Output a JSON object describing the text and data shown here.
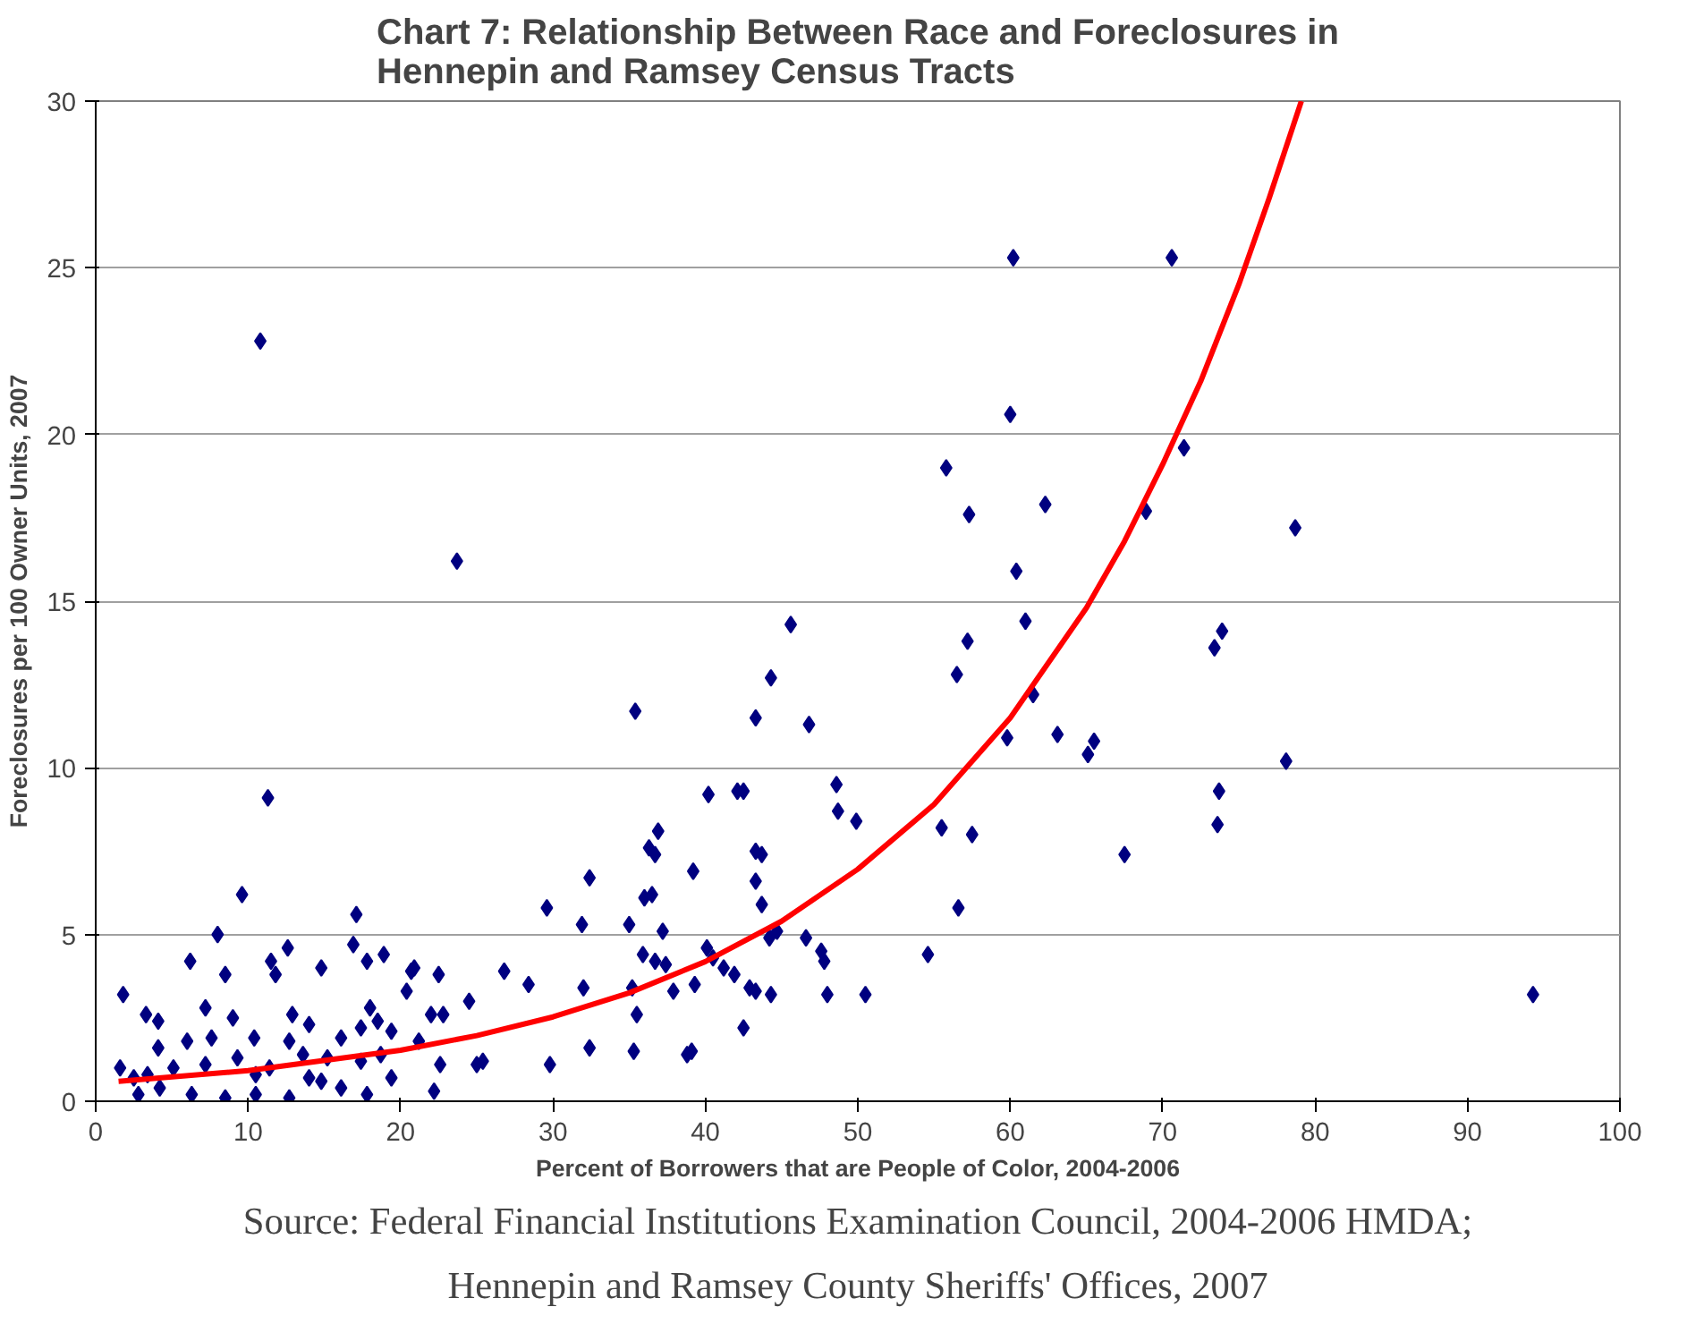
{
  "chart_data": {
    "type": "scatter",
    "title": "Chart 7: Relationship Between Race and Foreclosures in Hennepin and Ramsey Census Tracts",
    "xlabel": "Percent of Borrowers that are People of Color, 2004-2006",
    "ylabel": "Foreclosures per 100 Owner Units, 2007",
    "annotations": [
      "Source: Federal Financial Institutions Examination Council, 2004-2006 HMDA;",
      "Hennepin and Ramsey County Sheriffs' Offices, 2007"
    ],
    "xlim": [
      0,
      100
    ],
    "ylim": [
      0,
      30
    ],
    "xticks": [
      0,
      10,
      20,
      30,
      40,
      50,
      60,
      70,
      80,
      90,
      100
    ],
    "yticks": [
      0,
      5,
      10,
      15,
      20,
      25,
      30
    ],
    "grid": "y",
    "series": [
      {
        "marker": "diamond",
        "color": "#000080",
        "x": [
          10.8,
          23.7,
          60.2,
          70.6,
          60.0,
          55.8,
          62.3,
          68.9,
          71.4,
          78.7,
          57.3,
          60.4,
          61.0,
          45.6,
          44.3,
          61.5,
          56.5,
          57.2,
          73.9,
          73.4,
          46.8,
          35.4,
          43.3,
          63.1,
          59.8,
          65.5,
          65.1,
          78.1,
          11.3,
          40.2,
          42.1,
          42.5,
          48.6,
          73.7,
          48.7,
          49.9,
          36.9,
          73.6,
          57.5,
          55.5,
          36.7,
          43.3,
          43.7,
          36.3,
          67.5,
          39.2,
          32.4,
          43.3,
          9.6,
          36.0,
          36.5,
          43.7,
          56.6,
          29.6,
          17.1,
          35.0,
          31.9,
          37.2,
          8.0,
          44.7,
          44.2,
          46.6,
          47.6,
          47.8,
          12.6,
          40.1,
          40.5,
          35.9,
          36.7,
          37.4,
          54.6,
          6.2,
          11.5,
          26.8,
          41.2,
          41.9,
          22.5,
          20.9,
          50.5,
          48.0,
          44.3,
          94.3,
          42.9,
          43.3,
          35.2,
          32.0,
          28.4,
          37.9,
          39.3,
          1.8,
          42.5,
          35.5,
          35.3,
          38.8,
          39.1,
          29.8,
          25.4,
          32.4,
          16.9,
          17.8,
          18.9,
          14.8,
          3.3,
          4.1,
          7.2,
          8.5,
          11.8,
          12.9,
          18.0,
          20.7,
          20.4,
          22.0,
          24.5,
          22.8,
          18.5,
          1.6,
          4.1,
          6.0,
          7.6,
          9.0,
          10.4,
          12.7,
          14.0,
          16.1,
          17.4,
          19.4,
          21.2,
          22.6,
          25.0,
          22.2,
          2.8,
          4.2,
          6.3,
          8.5,
          10.5,
          12.7,
          14.0,
          16.1,
          17.8,
          19.4,
          5.1,
          7.2,
          9.3,
          11.4,
          13.6,
          15.2,
          17.4,
          18.7,
          3.4,
          2.5,
          10.5,
          14.8
        ],
        "values": [
          22.8,
          16.2,
          25.3,
          25.3,
          20.6,
          19.0,
          17.9,
          17.7,
          19.6,
          17.2,
          17.6,
          15.9,
          14.4,
          14.3,
          12.7,
          12.2,
          12.8,
          13.8,
          14.1,
          13.6,
          11.3,
          11.7,
          11.5,
          11.0,
          10.9,
          10.8,
          10.4,
          10.2,
          9.1,
          9.2,
          9.3,
          9.3,
          9.5,
          9.3,
          8.7,
          8.4,
          8.1,
          8.3,
          8.0,
          8.2,
          7.4,
          7.5,
          7.4,
          7.6,
          7.4,
          6.9,
          6.7,
          6.6,
          6.2,
          6.1,
          6.2,
          5.9,
          5.8,
          5.8,
          5.6,
          5.3,
          5.3,
          5.1,
          5.0,
          5.1,
          4.9,
          4.9,
          4.5,
          4.2,
          4.6,
          4.6,
          4.3,
          4.4,
          4.2,
          4.1,
          4.4,
          4.2,
          4.2,
          3.9,
          4.0,
          3.8,
          3.8,
          4.0,
          3.2,
          3.2,
          3.2,
          3.2,
          3.4,
          3.3,
          3.4,
          3.4,
          3.5,
          3.3,
          3.5,
          3.2,
          2.2,
          2.6,
          1.5,
          1.4,
          1.5,
          1.1,
          1.2,
          1.6,
          4.7,
          4.2,
          4.4,
          4.0,
          2.6,
          2.4,
          2.8,
          3.8,
          3.8,
          2.6,
          2.8,
          3.9,
          3.3,
          2.6,
          3.0,
          2.6,
          2.4,
          1.0,
          1.6,
          1.8,
          1.9,
          2.5,
          1.9,
          1.8,
          2.3,
          1.9,
          2.2,
          2.1,
          1.8,
          1.1,
          1.1,
          0.3,
          0.2,
          0.4,
          0.2,
          0.1,
          0.2,
          0.1,
          0.7,
          0.4,
          0.2,
          0.7,
          1.0,
          1.1,
          1.3,
          1.0,
          1.4,
          1.3,
          1.2,
          1.4,
          0.8,
          0.7,
          0.8,
          0.6
        ]
      },
      {
        "type": "line",
        "marker": "none",
        "color": "#ff0000",
        "x": [
          1.5,
          10,
          20,
          25,
          30,
          35,
          40,
          45,
          50,
          55,
          60,
          65,
          67.5,
          70,
          72.5,
          75,
          77,
          79.1
        ],
        "values": [
          0.6,
          0.92,
          1.53,
          1.97,
          2.53,
          3.25,
          4.19,
          5.4,
          6.96,
          8.9,
          11.5,
          14.8,
          16.8,
          19.1,
          21.6,
          24.5,
          27.1,
          30
        ]
      }
    ]
  }
}
